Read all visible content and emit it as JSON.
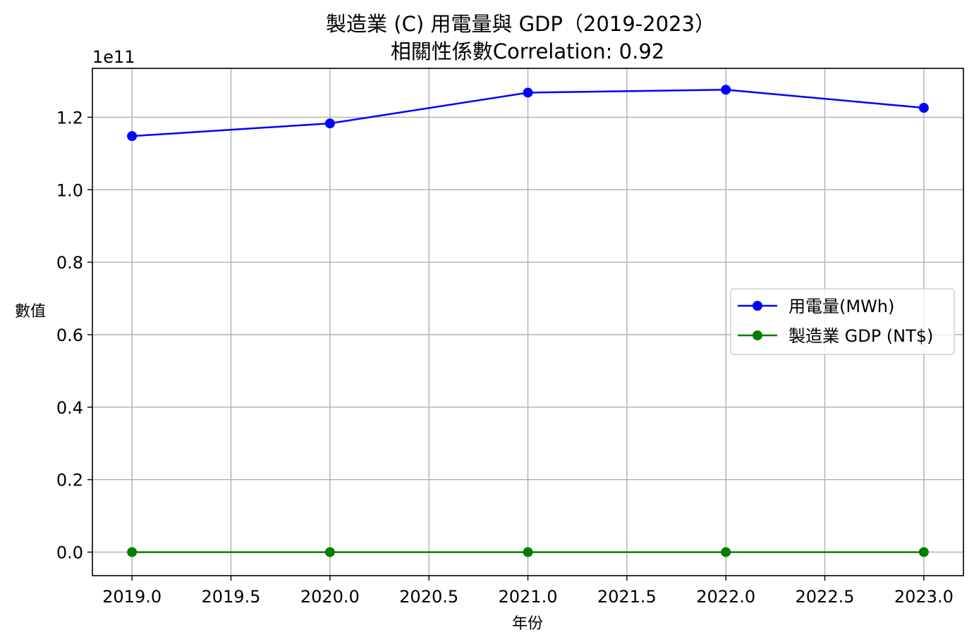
{
  "chart_data": {
    "type": "line",
    "title_line1": "製造業 (C) 用電量與 GDP（2019-2023）",
    "title_line2": "相關性係數Correlation: 0.92",
    "xlabel": "年份",
    "ylabel": "數值",
    "y_offset_label": "1e11",
    "x": [
      2019,
      2020,
      2021,
      2022,
      2023
    ],
    "xlim": [
      2018.8,
      2023.2
    ],
    "ylim": [
      -0.065,
      1.335
    ],
    "xticks": [
      2019.0,
      2019.5,
      2020.0,
      2020.5,
      2021.0,
      2021.5,
      2022.0,
      2022.5,
      2023.0
    ],
    "xtick_labels": [
      "2019.0",
      "2019.5",
      "2020.0",
      "2020.5",
      "2021.0",
      "2021.5",
      "2022.0",
      "2022.5",
      "2023.0"
    ],
    "yticks": [
      0.0,
      0.2,
      0.4,
      0.6,
      0.8,
      1.0,
      1.2
    ],
    "ytick_labels": [
      "0.0",
      "0.2",
      "0.4",
      "0.6",
      "0.8",
      "1.0",
      "1.2"
    ],
    "grid": true,
    "legend_position": "center-right",
    "series": [
      {
        "name": "用電量(MWh)",
        "color": "#0000ff",
        "marker": "circle",
        "values": [
          1.148,
          1.183,
          1.268,
          1.276,
          1.226
        ]
      },
      {
        "name": "製造業 GDP (NT$)",
        "color": "#008000",
        "marker": "circle",
        "values": [
          0.0,
          0.0,
          0.0,
          0.0,
          0.0
        ]
      }
    ]
  }
}
